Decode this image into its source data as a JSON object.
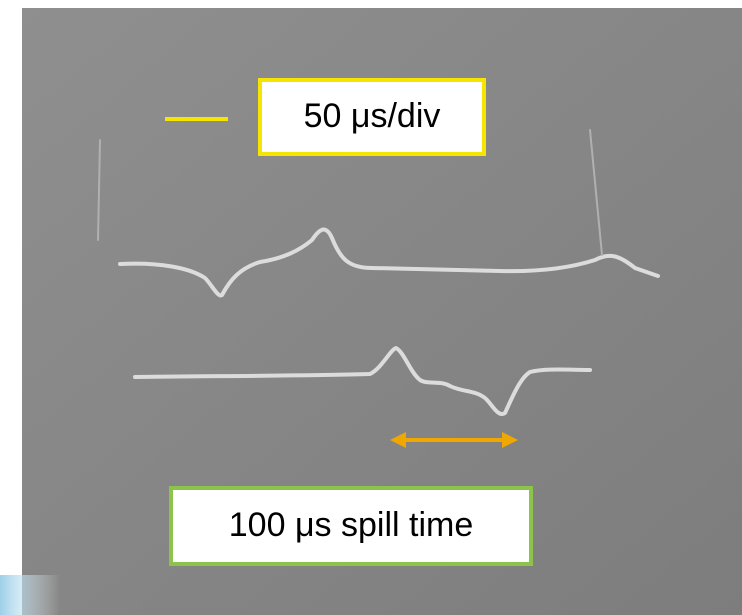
{
  "annotations": {
    "scale_label": "50 μs/div",
    "spill_label": "100 μs spill time"
  }
}
